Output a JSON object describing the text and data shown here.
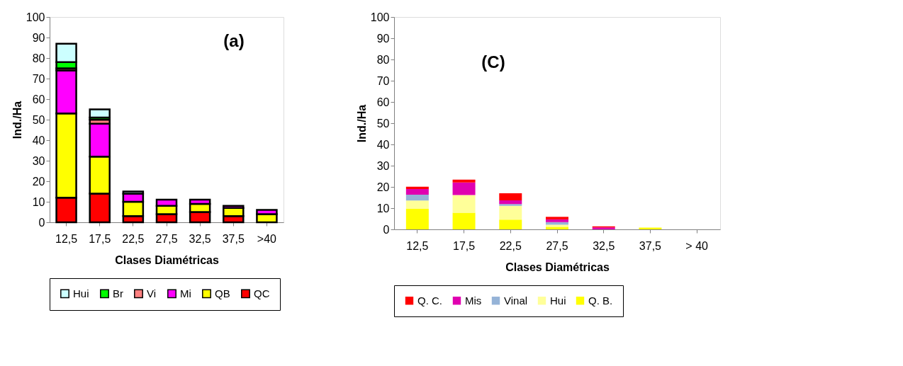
{
  "chart_data": [
    {
      "type": "bar",
      "stacked": true,
      "xlabel": "Clases Diamétricas",
      "ylabel": "Ind./Ha",
      "annotations": [
        "(a)"
      ],
      "categories": [
        "12,5",
        "17,5",
        "22,5",
        "27,5",
        "32,5",
        "37,5",
        ">40"
      ],
      "ylim": [
        0,
        100
      ],
      "yticks": [
        0,
        10,
        20,
        30,
        40,
        50,
        60,
        70,
        80,
        90,
        100
      ],
      "grid": false,
      "legend": "bottom",
      "series": [
        {
          "name": "QC",
          "color": "#ff0000",
          "values": [
            12,
            14,
            3,
            4,
            5,
            3,
            0
          ]
        },
        {
          "name": "QB",
          "color": "#ffff00",
          "values": [
            41,
            18,
            7,
            4,
            4,
            4,
            4
          ]
        },
        {
          "name": "Mi",
          "color": "#ff00ff",
          "values": [
            21,
            16,
            4,
            3,
            2,
            1,
            2
          ]
        },
        {
          "name": "Vi",
          "color": "#ff8080",
          "values": [
            1,
            2,
            0,
            0,
            0,
            0,
            0
          ]
        },
        {
          "name": "Br",
          "color": "#00ff00",
          "values": [
            3,
            1,
            0,
            0,
            0,
            0,
            0
          ]
        },
        {
          "name": "Hui",
          "color": "#ccffff",
          "values": [
            9,
            4,
            1,
            0,
            0,
            0,
            0
          ]
        }
      ]
    },
    {
      "type": "bar",
      "stacked": true,
      "xlabel": "Clases Diamétricas",
      "ylabel": "Ind./Ha",
      "annotations": [
        "(C)"
      ],
      "categories": [
        "12,5",
        "17,5",
        "22,5",
        "27,5",
        "32,5",
        "37,5",
        "> 40"
      ],
      "ylim": [
        0,
        100
      ],
      "yticks": [
        0,
        10,
        20,
        30,
        40,
        50,
        60,
        70,
        80,
        90,
        100
      ],
      "grid": false,
      "legend": "bottom",
      "series": [
        {
          "name": "Q. B.",
          "color": "#ffff00",
          "values": [
            9.7,
            7.8,
            4.6,
            1.2,
            0,
            0.8,
            0
          ]
        },
        {
          "name": "Hui",
          "color": "#ffff99",
          "values": [
            3.9,
            8.4,
            6.5,
            1.0,
            0,
            0,
            0
          ]
        },
        {
          "name": "Vinal",
          "color": "#95b3d7",
          "values": [
            2.7,
            0,
            0.8,
            1.2,
            0,
            0,
            0
          ]
        },
        {
          "name": "Mis",
          "color": "#e000b0",
          "values": [
            2.7,
            5.9,
            1.8,
            1.3,
            0.9,
            0,
            0
          ]
        },
        {
          "name": "Q. C.",
          "color": "#ff0000",
          "values": [
            1.1,
            1.3,
            3.3,
            1.2,
            0.5,
            0,
            0
          ]
        }
      ]
    }
  ]
}
